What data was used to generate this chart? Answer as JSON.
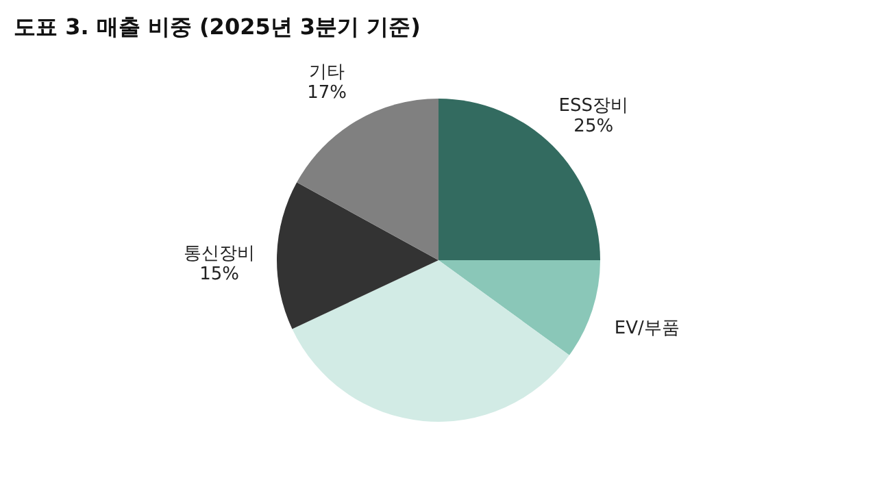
{
  "chart_data": {
    "type": "pie",
    "title": "도표 3. 매출 비중 (2025년 3분기 기준)",
    "categories": [
      "ESS장비",
      "EV/부품",
      null,
      "통신장비",
      "기타"
    ],
    "values": [
      25,
      10,
      33,
      15,
      17
    ],
    "colors": [
      "#336b60",
      "#8ac7b8",
      "#d2ebe5",
      "#333333",
      "#808080"
    ],
    "value_labels": [
      "25%",
      null,
      null,
      "15%",
      "17%"
    ]
  }
}
